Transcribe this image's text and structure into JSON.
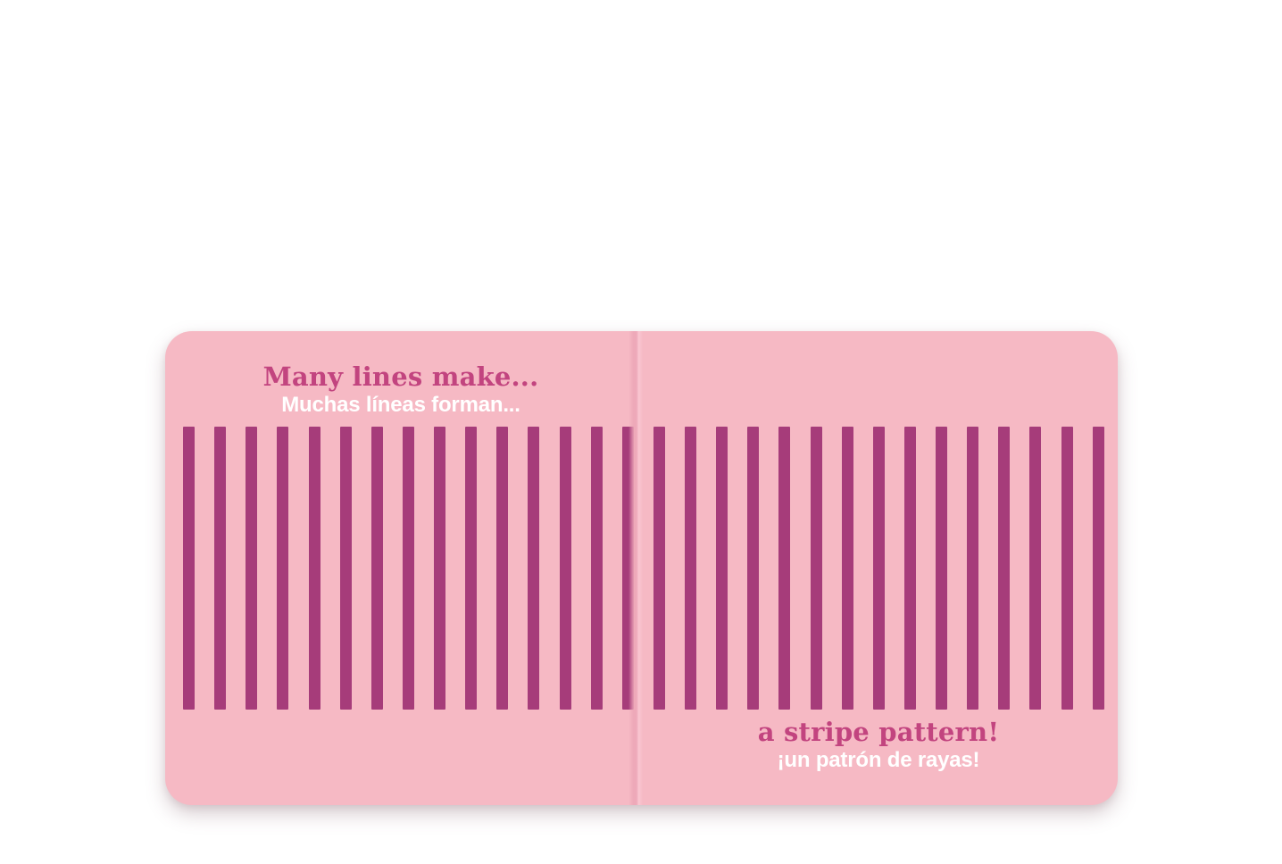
{
  "book": {
    "left_page": {
      "heading_en": "Many lines make...",
      "heading_es": "Muchas líneas forman..."
    },
    "right_page": {
      "heading_en": "a stripe pattern!",
      "heading_es": "¡un patrón de rayas!"
    },
    "stripes": {
      "count": 30,
      "color_hex": "#a63c7a"
    },
    "colors": {
      "page_pink": "#f6b9c4",
      "stripe_magenta": "#a63c7a",
      "text_accent_pink": "#c2447f",
      "text_white": "#ffffff",
      "spine_shadow_pink": "#eca6b7",
      "backdrop_white": "#ffffff"
    }
  }
}
